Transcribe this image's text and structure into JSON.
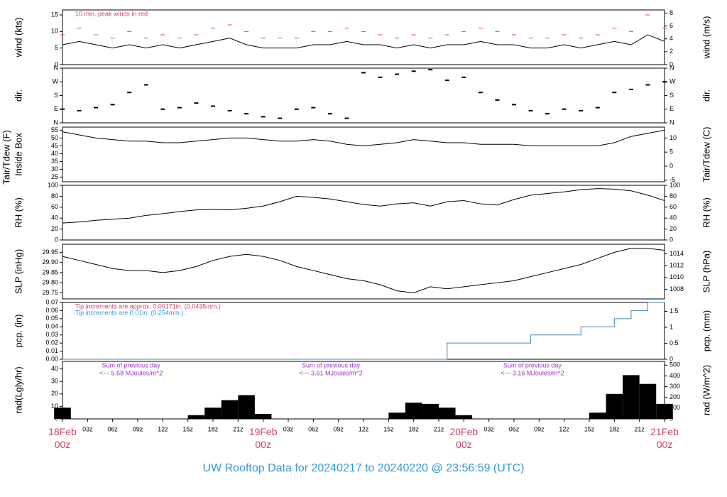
{
  "title": "UW Rooftop Data for 20240217  to  20240220 @ 23:56:59  (UTC)",
  "chart_data": [
    {
      "type": "line",
      "ylabel": "wind (kts)",
      "y2label": "wind (m/s)",
      "annotation": "10 min. peak winds in red",
      "annotation_color": "#d04070",
      "ylim": [
        0,
        16.5
      ],
      "yticks": [
        0,
        5,
        10,
        15
      ],
      "y2lim": [
        0,
        8.49
      ],
      "y2ticks": [
        0,
        2,
        4,
        6,
        8
      ],
      "series": [
        {
          "name": "wind",
          "style": "line",
          "color": "#000000",
          "values": [
            6,
            7,
            6,
            5,
            6,
            5,
            6,
            5,
            6,
            7,
            8,
            6,
            5,
            5,
            5,
            6,
            6,
            7,
            6,
            6,
            5,
            6,
            5,
            6,
            6,
            7,
            6,
            6,
            5,
            5,
            6,
            5,
            6,
            7,
            6,
            9,
            7
          ]
        },
        {
          "name": "peak",
          "style": "dash",
          "color": "#e0406a",
          "values": [
            9,
            11,
            9,
            8,
            10,
            8,
            9,
            8,
            9,
            11,
            12,
            10,
            8,
            8,
            8,
            10,
            10,
            11,
            10,
            9,
            8,
            9,
            8,
            9,
            10,
            11,
            10,
            9,
            8,
            8,
            9,
            8,
            9,
            11,
            10,
            15,
            11
          ]
        }
      ]
    },
    {
      "type": "scatter",
      "ylabel": "dir.",
      "y2label": "dir.",
      "ylim": [
        0,
        360
      ],
      "yticks": [
        {
          "value": 0,
          "label": "N"
        },
        {
          "value": 90,
          "label": "E"
        },
        {
          "value": 180,
          "label": "S"
        },
        {
          "value": 270,
          "label": "W"
        },
        {
          "value": 360,
          "label": "N"
        }
      ],
      "y2ticks": [
        {
          "value": 0,
          "label": "N"
        },
        {
          "value": 90,
          "label": "E"
        },
        {
          "value": 180,
          "label": "S"
        },
        {
          "value": 270,
          "label": "W"
        },
        {
          "value": 360,
          "label": "N"
        }
      ],
      "series": [
        {
          "name": "dir",
          "style": "scatter",
          "color": "#000000",
          "values": [
            90,
            80,
            100,
            120,
            200,
            250,
            90,
            100,
            130,
            110,
            80,
            60,
            40,
            30,
            90,
            100,
            60,
            30,
            330,
            300,
            320,
            340,
            350,
            280,
            300,
            200,
            150,
            120,
            80,
            60,
            90,
            80,
            100,
            200,
            220,
            250,
            270
          ]
        }
      ]
    },
    {
      "type": "line",
      "ylabel": "Tair/Tdew (F)",
      "ylabel_line2": "Inside Box",
      "y2label": "Tair/Tdew (C)",
      "ylim": [
        22,
        57
      ],
      "yticks": [
        25,
        30,
        35,
        40,
        45,
        50,
        55
      ],
      "y2lim": [
        -5.56,
        13.89
      ],
      "y2ticks": [
        -5,
        0,
        5,
        10
      ],
      "series": [
        {
          "name": "Tair",
          "style": "line",
          "color": "#000000",
          "values": [
            54,
            52,
            50,
            49,
            48,
            48,
            47,
            47,
            48,
            49,
            50,
            50,
            49,
            48,
            48,
            49,
            48,
            46,
            45,
            46,
            47,
            49,
            48,
            47,
            47,
            46,
            46,
            46,
            45,
            45,
            45,
            45,
            45,
            47,
            51,
            53,
            55
          ]
        }
      ]
    },
    {
      "type": "line",
      "ylabel": "RH (%)",
      "y2label": "RH (%)",
      "ylim": [
        0,
        100
      ],
      "yticks": [
        0,
        20,
        40,
        60,
        80,
        100
      ],
      "y2lim": [
        0,
        100
      ],
      "y2ticks": [
        0,
        20,
        40,
        60,
        80,
        100
      ],
      "series": [
        {
          "name": "RH",
          "style": "line",
          "color": "#000000",
          "values": [
            31,
            33,
            36,
            38,
            40,
            45,
            48,
            52,
            55,
            56,
            55,
            58,
            62,
            70,
            80,
            78,
            75,
            70,
            65,
            62,
            66,
            68,
            62,
            70,
            72,
            66,
            64,
            74,
            82,
            85,
            88,
            92,
            94,
            93,
            90,
            82,
            72
          ]
        }
      ]
    },
    {
      "type": "line",
      "ylabel": "SLP (inHg)",
      "y2label": "SLP (hPa)",
      "ylim": [
        29.72,
        29.99
      ],
      "yticks": [
        29.75,
        {
          "value": 29.8,
          "label": "29.80"
        },
        29.85,
        {
          "value": 29.9,
          "label": "29.90"
        },
        29.95
      ],
      "y2lim": [
        1006.4,
        1015.6
      ],
      "y2ticks": [
        1008,
        1010,
        1012,
        1014
      ],
      "series": [
        {
          "name": "SLP",
          "style": "line",
          "color": "#000000",
          "values": [
            29.93,
            29.91,
            29.89,
            29.87,
            29.86,
            29.86,
            29.85,
            29.86,
            29.88,
            29.91,
            29.93,
            29.94,
            29.93,
            29.91,
            29.88,
            29.86,
            29.84,
            29.82,
            29.81,
            29.79,
            29.76,
            29.75,
            29.78,
            29.77,
            29.78,
            29.79,
            29.8,
            29.81,
            29.83,
            29.85,
            29.87,
            29.89,
            29.92,
            29.95,
            29.97,
            29.97,
            29.96
          ]
        }
      ]
    },
    {
      "type": "step",
      "ylabel": "pcp. (in)",
      "y2label": "pcp. (mm)",
      "notes": [
        {
          "text": "Tip increments are approx. 0.00171in. (0.0435mm.)",
          "color": "#d04070"
        },
        {
          "text": "Tip increments are 0.01in. (0.254mm.)",
          "color": "#3399dd"
        }
      ],
      "ylim": [
        0,
        0.07
      ],
      "yticks": [
        {
          "value": 0,
          "label": "0.00"
        },
        0.01,
        0.02,
        0.03,
        0.04,
        0.05,
        0.06,
        0.07
      ],
      "y2lim": [
        0,
        1.778
      ],
      "y2ticks": [
        0,
        0.5,
        1,
        1.5
      ],
      "series": [
        {
          "name": "pcp",
          "style": "step",
          "color": "#4682b4",
          "values": [
            0,
            0,
            0,
            0,
            0,
            0,
            0,
            0,
            0,
            0,
            0,
            0,
            0,
            0,
            0,
            0,
            0,
            0,
            0,
            0,
            0,
            0,
            0,
            0.02,
            0.02,
            0.02,
            0.02,
            0.02,
            0.03,
            0.03,
            0.03,
            0.04,
            0.04,
            0.05,
            0.06,
            0.07,
            0.07
          ]
        }
      ]
    },
    {
      "type": "bar",
      "ylabel": "rad(Lgly/hr)",
      "y2label": "rad (W/m^2)",
      "ylim": [
        0,
        46
      ],
      "yticks": [
        0,
        10,
        20,
        30,
        40
      ],
      "y2lim": [
        0,
        535
      ],
      "y2ticks": [
        0,
        100,
        200,
        300,
        400,
        500
      ],
      "x": [
        0,
        2,
        4,
        6,
        8,
        10,
        12,
        14,
        16,
        18,
        20,
        22,
        24,
        26,
        28,
        30,
        32,
        34,
        36,
        38,
        40,
        42,
        44,
        46,
        48,
        50,
        52,
        54,
        56,
        58,
        60,
        62,
        64,
        66,
        68,
        70,
        72
      ],
      "xlim": [
        0,
        72
      ],
      "xticks": [
        {
          "value": 0,
          "label": "18Feb 00z"
        },
        {
          "value": 3,
          "label": "03z"
        },
        {
          "value": 6,
          "label": "06z"
        },
        {
          "value": 9,
          "label": "09z"
        },
        {
          "value": 12,
          "label": "12z"
        },
        {
          "value": 15,
          "label": "15z"
        },
        {
          "value": 18,
          "label": "18z"
        },
        {
          "value": 21,
          "label": "21z"
        },
        {
          "value": 24,
          "label": "19Feb 00z"
        },
        {
          "value": 27,
          "label": "03z"
        },
        {
          "value": 30,
          "label": "06z"
        },
        {
          "value": 33,
          "label": "09z"
        },
        {
          "value": 36,
          "label": "12z"
        },
        {
          "value": 39,
          "label": "15z"
        },
        {
          "value": 42,
          "label": "18z"
        },
        {
          "value": 45,
          "label": "21z"
        },
        {
          "value": 48,
          "label": "20Feb 00z"
        },
        {
          "value": 51,
          "label": "03z"
        },
        {
          "value": 54,
          "label": "06z"
        },
        {
          "value": 57,
          "label": "09z"
        },
        {
          "value": 60,
          "label": "12z"
        },
        {
          "value": 63,
          "label": "15z"
        },
        {
          "value": 66,
          "label": "18z"
        },
        {
          "value": 69,
          "label": "21z"
        },
        {
          "value": 72,
          "label": "21Feb 00z"
        }
      ],
      "notes": [
        {
          "x": 8.2,
          "text": "Sum of previous day",
          "subtext": "<--- 5.68 MJoules/m^2"
        },
        {
          "x": 32.1,
          "text": "Sum of previous day",
          "subtext": "<--- 3.61 MJoules/m^2"
        },
        {
          "x": 56.2,
          "text": "Sum of previous day",
          "subtext": "<--- 3.16 MJoules/m^2"
        }
      ],
      "series": [
        {
          "name": "rad",
          "style": "bar",
          "color": "#000000",
          "values": [
            9,
            0,
            0,
            0,
            0,
            0,
            0,
            0,
            3,
            9,
            15,
            19,
            4,
            0,
            0,
            0,
            0,
            0,
            0,
            0,
            5,
            13,
            12,
            9,
            3,
            0,
            0,
            0,
            0,
            0,
            0,
            0,
            5,
            20,
            35,
            28,
            12
          ]
        }
      ]
    }
  ]
}
